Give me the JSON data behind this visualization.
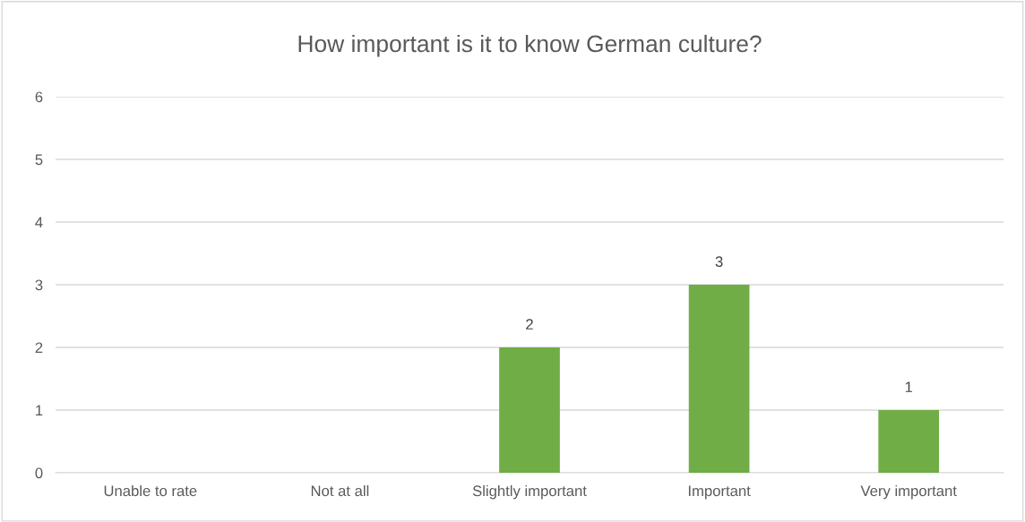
{
  "chart_data": {
    "type": "bar",
    "title": "How important is it to know German culture?",
    "categories": [
      "Unable to rate",
      "Not at all",
      "Slightly important",
      "Important",
      "Very important"
    ],
    "values": [
      0,
      0,
      2,
      3,
      1
    ],
    "value_labels": [
      null,
      null,
      "2",
      "3",
      "1"
    ],
    "color": "#70ad47",
    "ylim": [
      0,
      6
    ],
    "yticks": [
      0,
      1,
      2,
      3,
      4,
      5,
      6
    ],
    "grid": "y",
    "legend": false
  }
}
